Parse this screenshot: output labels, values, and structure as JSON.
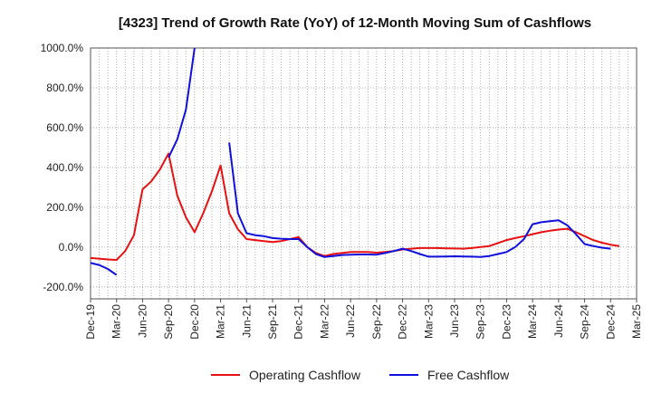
{
  "chart_data": {
    "type": "line",
    "title": "[4323]  Trend of Growth Rate (YoY) of 12-Month Moving Sum of Cashflows",
    "xlabel": "",
    "ylabel": "",
    "ylim": [
      -260,
      1000
    ],
    "y_ticks": [
      -200,
      0,
      200,
      400,
      600,
      800,
      1000
    ],
    "y_tick_labels": [
      "-200.0%",
      "0.0%",
      "200.0%",
      "400.0%",
      "600.0%",
      "800.0%",
      "1000.0%"
    ],
    "x_tick_labels": [
      "Dec-19",
      "Mar-20",
      "Jun-20",
      "Sep-20",
      "Dec-20",
      "Mar-21",
      "Jun-21",
      "Sep-21",
      "Dec-21",
      "Mar-22",
      "Jun-22",
      "Sep-22",
      "Dec-22",
      "Mar-23",
      "Jun-23",
      "Sep-23",
      "Dec-23",
      "Mar-24",
      "Jun-24",
      "Sep-24",
      "Dec-24",
      "Mar-25"
    ],
    "x": [
      "Dec-19",
      "Jan-20",
      "Feb-20",
      "Mar-20",
      "Apr-20",
      "May-20",
      "Jun-20",
      "Jul-20",
      "Aug-20",
      "Sep-20",
      "Oct-20",
      "Nov-20",
      "Dec-20",
      "Jan-21",
      "Feb-21",
      "Mar-21",
      "Apr-21",
      "May-21",
      "Jun-21",
      "Jul-21",
      "Aug-21",
      "Sep-21",
      "Oct-21",
      "Nov-21",
      "Dec-21",
      "Jan-22",
      "Feb-22",
      "Mar-22",
      "Apr-22",
      "May-22",
      "Jun-22",
      "Jul-22",
      "Aug-22",
      "Sep-22",
      "Oct-22",
      "Nov-22",
      "Dec-22",
      "Jan-23",
      "Feb-23",
      "Mar-23",
      "Apr-23",
      "May-23",
      "Jun-23",
      "Jul-23",
      "Aug-23",
      "Sep-23",
      "Oct-23",
      "Nov-23",
      "Dec-23",
      "Jan-24",
      "Feb-24",
      "Mar-24",
      "Apr-24",
      "May-24",
      "Jun-24",
      "Jul-24",
      "Aug-24",
      "Sep-24",
      "Oct-24",
      "Nov-24",
      "Dec-24",
      "Jan-25",
      "Feb-25",
      "Mar-25"
    ],
    "grid": true,
    "legend_position": "bottom-center",
    "series": [
      {
        "name": "Operating Cashflow",
        "color": "#e81010",
        "values": [
          -55,
          -58,
          -62,
          -65,
          -20,
          60,
          290,
          330,
          390,
          470,
          260,
          150,
          75,
          170,
          280,
          410,
          170,
          90,
          40,
          35,
          30,
          25,
          30,
          40,
          50,
          0,
          -30,
          -45,
          -35,
          -30,
          -25,
          -25,
          -25,
          -28,
          -25,
          -20,
          -12,
          -8,
          -5,
          -5,
          -5,
          -6,
          -7,
          -8,
          -5,
          0,
          5,
          20,
          35,
          45,
          55,
          65,
          75,
          82,
          88,
          92,
          75,
          55,
          35,
          22,
          12,
          5,
          null,
          null
        ]
      },
      {
        "name": "Free Cashflow",
        "color": "#1010dd",
        "values": [
          -80,
          -90,
          -110,
          -140,
          null,
          null,
          null,
          null,
          null,
          450,
          540,
          690,
          1000,
          null,
          null,
          null,
          525,
          170,
          70,
          60,
          55,
          45,
          42,
          40,
          40,
          0,
          -35,
          -50,
          -45,
          -40,
          -38,
          -37,
          -37,
          -38,
          -30,
          -20,
          -8,
          -20,
          -35,
          -48,
          -48,
          -47,
          -46,
          -47,
          -48,
          -50,
          -45,
          -35,
          -25,
          0,
          40,
          115,
          125,
          130,
          135,
          110,
          65,
          15,
          5,
          -3,
          -8,
          null,
          null,
          null
        ]
      }
    ]
  }
}
